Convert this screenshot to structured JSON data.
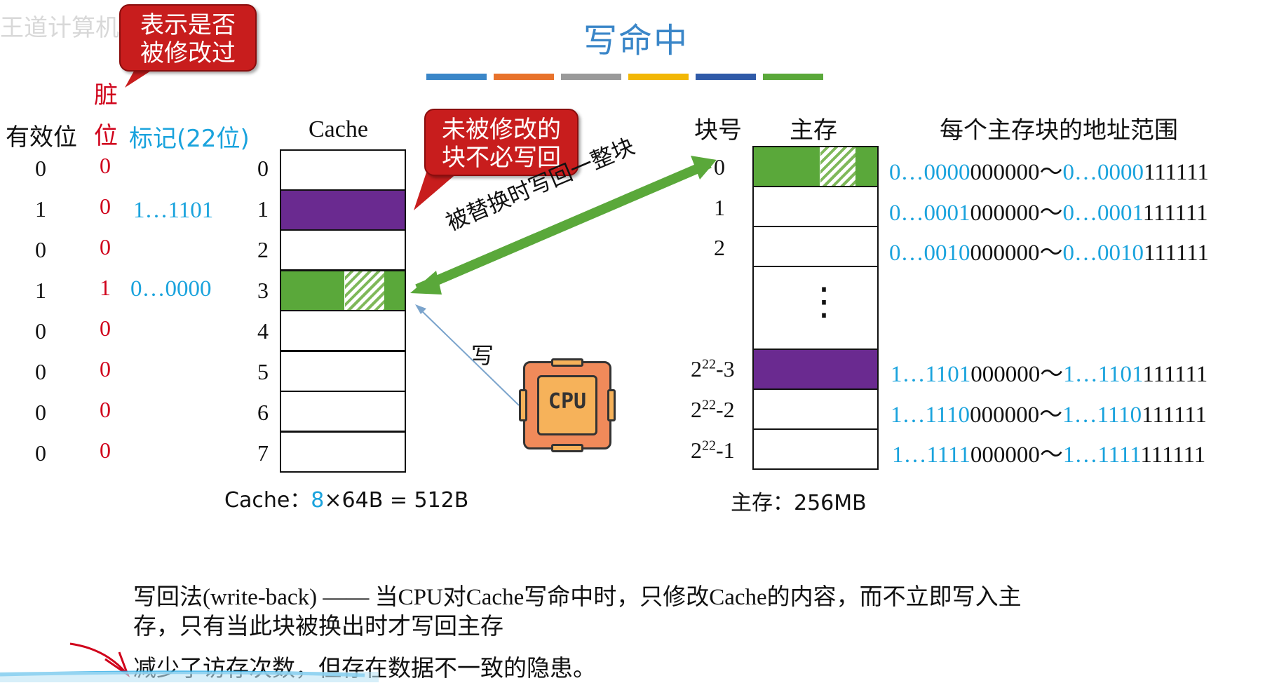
{
  "title": "写命中",
  "title_bar_colors": [
    "#3a86c8",
    "#e8722b",
    "#9a9a9a",
    "#f2b705",
    "#2f5aa8",
    "#5aa83a"
  ],
  "callouts": {
    "dirty_note_line1": "表示是否",
    "dirty_note_line2": "被修改过",
    "unmodified_line1": "未被修改的",
    "unmodified_line2": "块不必写回"
  },
  "headers": {
    "valid": "有效位",
    "dirty_line1": "脏",
    "dirty_line2": "位",
    "tag": "标记(22位)",
    "cache": "Cache",
    "block_no": "块号",
    "main_memory": "主存",
    "addr_range": "每个主存块的地址范围"
  },
  "cache_rows": [
    {
      "index": "0",
      "valid": "0",
      "dirty": "0",
      "tag": ""
    },
    {
      "index": "1",
      "valid": "1",
      "dirty": "0",
      "tag": "1…1101"
    },
    {
      "index": "2",
      "valid": "0",
      "dirty": "0",
      "tag": ""
    },
    {
      "index": "3",
      "valid": "1",
      "dirty": "1",
      "tag": "0…0000"
    },
    {
      "index": "4",
      "valid": "0",
      "dirty": "0",
      "tag": ""
    },
    {
      "index": "5",
      "valid": "0",
      "dirty": "0",
      "tag": ""
    },
    {
      "index": "6",
      "valid": "0",
      "dirty": "0",
      "tag": ""
    },
    {
      "index": "7",
      "valid": "0",
      "dirty": "0",
      "tag": ""
    }
  ],
  "cache_caption": {
    "prefix": "Cache：",
    "count": "8",
    "rest": "×64B = 512B"
  },
  "memory_rows": [
    {
      "label": "0",
      "addr_start_hi": "0…0000",
      "addr_start_lo": "000000～",
      "addr_end_hi": "0…0000",
      "addr_end_lo": "111111"
    },
    {
      "label": "1",
      "addr_start_hi": "0…0001",
      "addr_start_lo": "000000～",
      "addr_end_hi": "0…0001",
      "addr_end_lo": "111111"
    },
    {
      "label": "2",
      "addr_start_hi": "0…0010",
      "addr_start_lo": "000000～",
      "addr_end_hi": "0…0010",
      "addr_end_lo": "111111"
    },
    {
      "label_base": "2",
      "label_exp": "22",
      "label_suffix": "-3",
      "addr_start_hi": "1…1101",
      "addr_start_lo": "000000～",
      "addr_end_hi": "1…1101",
      "addr_end_lo": "111111"
    },
    {
      "label_base": "2",
      "label_exp": "22",
      "label_suffix": "-2",
      "addr_start_hi": "1…1110",
      "addr_start_lo": "000000～",
      "addr_end_hi": "1…1110",
      "addr_end_lo": "111111"
    },
    {
      "label_base": "2",
      "label_exp": "22",
      "label_suffix": "-1",
      "addr_start_hi": "1…1111",
      "addr_start_lo": "000000～",
      "addr_end_hi": "1…1111",
      "addr_end_lo": "111111"
    }
  ],
  "memory_ellipsis": "⋮",
  "memory_caption": "主存：256MB",
  "arrow_labels": {
    "writeback": "被替换时写回一整块",
    "write": "写"
  },
  "cpu_label": "CPU",
  "colors": {
    "purple": "#6a2a90",
    "green": "#5aa83a",
    "red": "#c81d1d",
    "blue": "#1aa3dd",
    "cpu_orange": "#f08a5a"
  },
  "description": {
    "line1": "写回法(write-back) —— 当CPU对Cache写命中时，只修改Cache的内容，而不立即写入主",
    "line2": "存，只有当此块被换出时才写回主存",
    "line3": "减少了访存次数，但存在数据不一致的隐患。"
  },
  "watermark": "王道计算机教育"
}
